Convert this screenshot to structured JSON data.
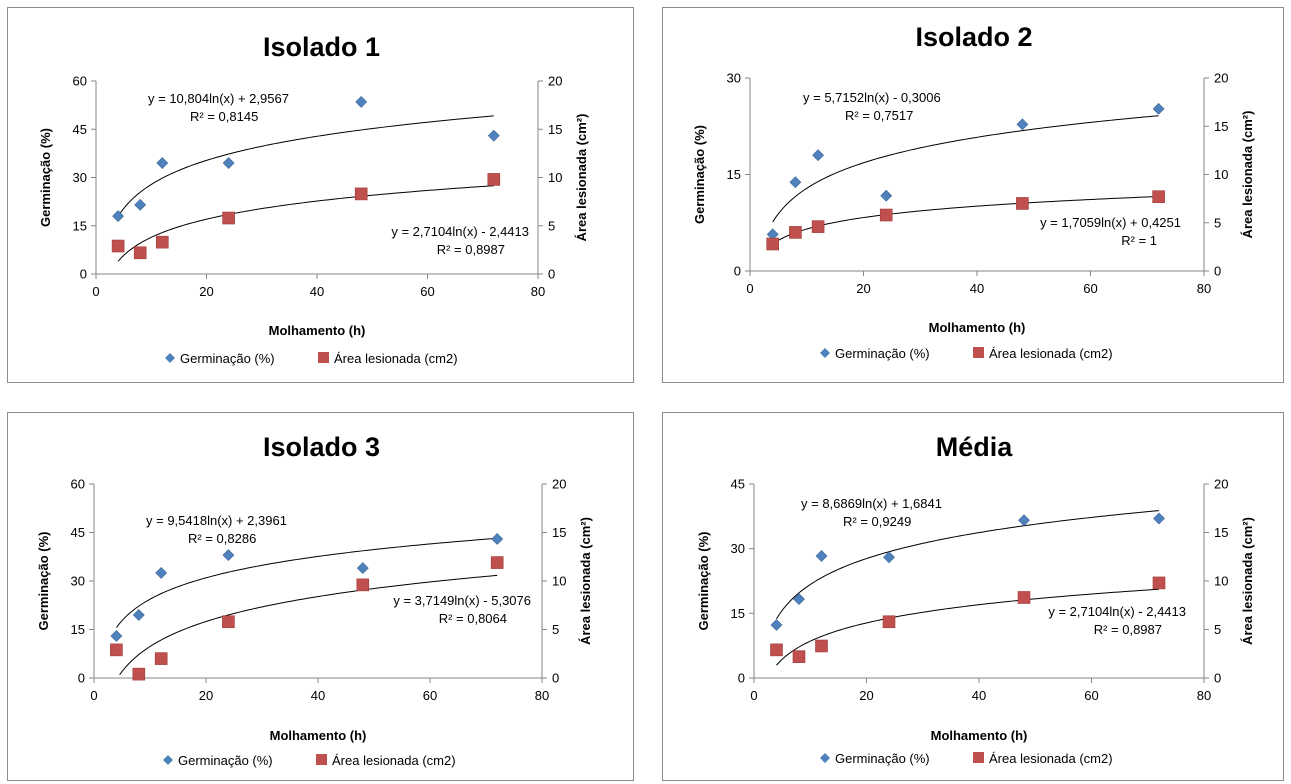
{
  "chart_data": [
    {
      "type": "scatter",
      "title": "Isolado 1",
      "xlabel": "Molhamento (h)",
      "ylabel": "Germinação (%)",
      "y2label": "Área lesionada (cm²)",
      "xlim": [
        0,
        80
      ],
      "xticks": [
        "0",
        "20",
        "40",
        "60",
        "80"
      ],
      "ylim": [
        0,
        60
      ],
      "yticks": [
        "0",
        "15",
        "30",
        "45",
        "60"
      ],
      "y2lim": [
        0,
        20
      ],
      "y2ticks": [
        "0",
        "5",
        "10",
        "15",
        "20"
      ],
      "series": [
        {
          "name": "Germinação (%)",
          "axis": "left",
          "marker": "diamond",
          "color": "#4f81bd",
          "x": [
            4,
            8,
            12,
            24,
            48,
            72
          ],
          "y": [
            18,
            21.5,
            34.5,
            34.5,
            53.5,
            43
          ],
          "trend": {
            "a": 10.804,
            "b": 2.9567,
            "equation": "y = 10,804ln(x) + 2,9567",
            "r2": "R² = 0,8145"
          }
        },
        {
          "name": "Área lesionada (cm2)",
          "axis": "right",
          "marker": "square",
          "color": "#c0504d",
          "x": [
            4,
            8,
            12,
            24,
            48,
            72
          ],
          "y": [
            2.9,
            2.2,
            3.3,
            5.8,
            8.3,
            9.8
          ],
          "trend": {
            "a": 2.7104,
            "b": -2.4413,
            "equation": "y = 2,7104ln(x) - 2,4413",
            "r2": "R² = 0,8987"
          }
        }
      ]
    },
    {
      "type": "scatter",
      "title": "Isolado 2",
      "xlabel": "Molhamento (h)",
      "ylabel": "Germinação (%)",
      "y2label": "Área lesionada (cm²)",
      "xlim": [
        0,
        80
      ],
      "xticks": [
        "0",
        "20",
        "40",
        "60",
        "80"
      ],
      "ylim": [
        0,
        30
      ],
      "yticks": [
        "0",
        "15",
        "30"
      ],
      "y2lim": [
        0,
        20
      ],
      "y2ticks": [
        "0",
        "5",
        "10",
        "15",
        "20"
      ],
      "series": [
        {
          "name": "Germinação (%)",
          "axis": "left",
          "marker": "diamond",
          "color": "#4f81bd",
          "x": [
            4,
            8,
            12,
            24,
            48,
            72
          ],
          "y": [
            5.7,
            13.8,
            18,
            11.7,
            22.8,
            25.2
          ],
          "trend": {
            "a": 5.7152,
            "b": -0.3006,
            "equation": "y = 5,7152ln(x) - 0,3006",
            "r2": "R² = 0,7517"
          }
        },
        {
          "name": "Área lesionada (cm2)",
          "axis": "right",
          "marker": "square",
          "color": "#c0504d",
          "x": [
            4,
            8,
            12,
            24,
            48,
            72
          ],
          "y": [
            2.8,
            4.0,
            4.6,
            5.8,
            7.0,
            7.7
          ],
          "trend": {
            "a": 1.7059,
            "b": 0.4251,
            "equation": "y = 1,7059ln(x) + 0,4251",
            "r2": "R² = 1"
          }
        }
      ]
    },
    {
      "type": "scatter",
      "title": "Isolado 3",
      "xlabel": "Molhamento (h)",
      "ylabel": "Germinação (%)",
      "y2label": "Área lesionada (cm²)",
      "xlim": [
        0,
        80
      ],
      "xticks": [
        "0",
        "20",
        "40",
        "60",
        "80"
      ],
      "ylim": [
        0,
        60
      ],
      "yticks": [
        "0",
        "15",
        "30",
        "45",
        "60"
      ],
      "y2lim": [
        0,
        20
      ],
      "y2ticks": [
        "0",
        "5",
        "10",
        "15",
        "20"
      ],
      "series": [
        {
          "name": "Germinação (%)",
          "axis": "left",
          "marker": "diamond",
          "color": "#4f81bd",
          "x": [
            4,
            8,
            12,
            24,
            48,
            72
          ],
          "y": [
            13,
            19.5,
            32.5,
            38,
            34,
            43
          ],
          "trend": {
            "a": 9.5418,
            "b": 2.3961,
            "equation": "y = 9,5418ln(x) + 2,3961",
            "r2": "R² = 0,8286"
          }
        },
        {
          "name": "Área lesionada (cm2)",
          "axis": "right",
          "marker": "square",
          "color": "#c0504d",
          "x": [
            4,
            8,
            12,
            24,
            48,
            72
          ],
          "y": [
            2.9,
            0.4,
            2.0,
            5.8,
            9.6,
            11.9
          ],
          "trend": {
            "a": 3.7149,
            "b": -5.3076,
            "equation": "y = 3,7149ln(x) - 5,3076",
            "r2": "R² = 0,8064"
          }
        }
      ]
    },
    {
      "type": "scatter",
      "title": "Média",
      "xlabel": "Molhamento (h)",
      "ylabel": "Germinação (%)",
      "y2label": "Área lesionada (cm²)",
      "xlim": [
        0,
        80
      ],
      "xticks": [
        "0",
        "20",
        "40",
        "60",
        "80"
      ],
      "ylim": [
        0,
        45
      ],
      "yticks": [
        "0",
        "15",
        "30",
        "45"
      ],
      "y2lim": [
        0,
        20
      ],
      "y2ticks": [
        "0",
        "5",
        "10",
        "15",
        "20"
      ],
      "series": [
        {
          "name": "Germinação (%)",
          "axis": "left",
          "marker": "diamond",
          "color": "#4f81bd",
          "x": [
            4,
            8,
            12,
            24,
            48,
            72
          ],
          "y": [
            12.3,
            18.3,
            28.3,
            28,
            36.6,
            37
          ],
          "trend": {
            "a": 8.6869,
            "b": 1.6841,
            "equation": "y = 8,6869ln(x) + 1,6841",
            "r2": "R² = 0,9249"
          }
        },
        {
          "name": "Área lesionada (cm2)",
          "axis": "right",
          "marker": "square",
          "color": "#c0504d",
          "x": [
            4,
            8,
            12,
            24,
            48,
            72
          ],
          "y": [
            2.9,
            2.2,
            3.3,
            5.8,
            8.3,
            9.8
          ],
          "trend": {
            "a": 2.7104,
            "b": -2.4413,
            "equation": "y = 2,7104ln(x) - 2,4413",
            "r2": "R² = 0,8987"
          }
        }
      ]
    }
  ]
}
